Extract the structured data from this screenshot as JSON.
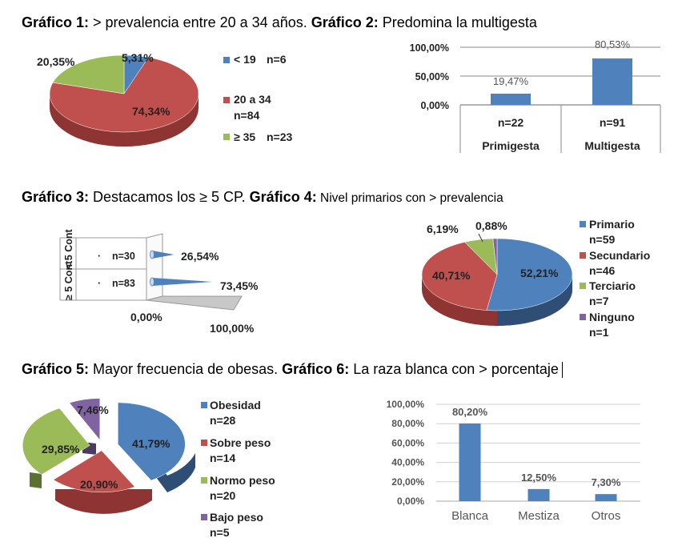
{
  "headings": {
    "h1": {
      "a": "Gráfico 1:",
      "b": " > prevalencia entre 20 a 34 años. ",
      "c": "Gráfico 2:",
      "d": " Predomina la multigesta"
    },
    "h3": {
      "a": "Gráfico 3:",
      "b": " Destacamos los ≥ 5 CP. ",
      "c": "Gráfico 4:",
      "d": " Nivel primarios con > prevalencia"
    },
    "h5": {
      "a": "Gráfico 5:",
      "b": " Mayor frecuencia de obesas. ",
      "c": "Gráfico 6:",
      "d": " La raza blanca con > porcentaje"
    }
  },
  "colors": {
    "blue": "#4f81bd",
    "red": "#c0504d",
    "green": "#9bbb59",
    "purple": "#8064a2"
  },
  "chart_data": [
    {
      "id": "grafico1",
      "type": "pie",
      "title": "",
      "labels": [
        "5,31%",
        "74,34%",
        "20,35%"
      ],
      "values": [
        5.31,
        74.34,
        20.35
      ],
      "legend": [
        {
          "name": "< 19",
          "count": "n=6"
        },
        {
          "name": "20 a 34",
          "count": "n=84"
        },
        {
          "name": "≥ 35",
          "count": "n=23"
        }
      ]
    },
    {
      "id": "grafico2",
      "type": "bar",
      "title": "",
      "categories": [
        "Primigesta",
        "Multigesta"
      ],
      "counts": [
        "n=22",
        "n=91"
      ],
      "values": [
        19.47,
        80.53
      ],
      "labels": [
        "19,47%",
        "80,53%"
      ],
      "ylim": [
        0,
        100
      ],
      "yticks": [
        "0,00%",
        "50,00%",
        "100,00%"
      ]
    },
    {
      "id": "grafico3",
      "type": "bar",
      "title": "",
      "categories": [
        "< 5 Cont",
        "≥ 5 Cont"
      ],
      "counts": [
        "n=30",
        "n=83"
      ],
      "values": [
        26.54,
        73.45
      ],
      "labels": [
        "26,54%",
        "73,45%"
      ],
      "xticks": [
        "0,00%",
        "100,00%"
      ]
    },
    {
      "id": "grafico4",
      "type": "pie",
      "title": "",
      "labels": [
        "52,21%",
        "40,71%",
        "6,19%",
        "0,88%"
      ],
      "values": [
        52.21,
        40.71,
        6.19,
        0.88
      ],
      "legend": [
        {
          "name": "Primario",
          "count": "n=59"
        },
        {
          "name": "Secundario",
          "count": "n=46"
        },
        {
          "name": "Terciario",
          "count": "n=7"
        },
        {
          "name": "Ninguno",
          "count": "n=1"
        }
      ]
    },
    {
      "id": "grafico5",
      "type": "pie",
      "title": "",
      "labels": [
        "41,79%",
        "20,90%",
        "29,85%",
        "7,46%"
      ],
      "values": [
        41.79,
        20.9,
        29.85,
        7.46
      ],
      "legend": [
        {
          "name": "Obesidad",
          "count": "n=28"
        },
        {
          "name": "Sobre peso",
          "count": "n=14"
        },
        {
          "name": "Normo peso",
          "count": "n=20"
        },
        {
          "name": "Bajo peso",
          "count": "n=5"
        }
      ]
    },
    {
      "id": "grafico6",
      "type": "bar",
      "title": "",
      "categories": [
        "Blanca",
        "Mestiza",
        "Otros"
      ],
      "values": [
        80.2,
        12.5,
        7.3
      ],
      "labels": [
        "80,20%",
        "12,50%",
        "7,30%"
      ],
      "ylim": [
        0,
        100
      ],
      "yticks": [
        "0,00%",
        "20,00%",
        "40,00%",
        "60,00%",
        "80,00%",
        "100,00%"
      ]
    }
  ]
}
